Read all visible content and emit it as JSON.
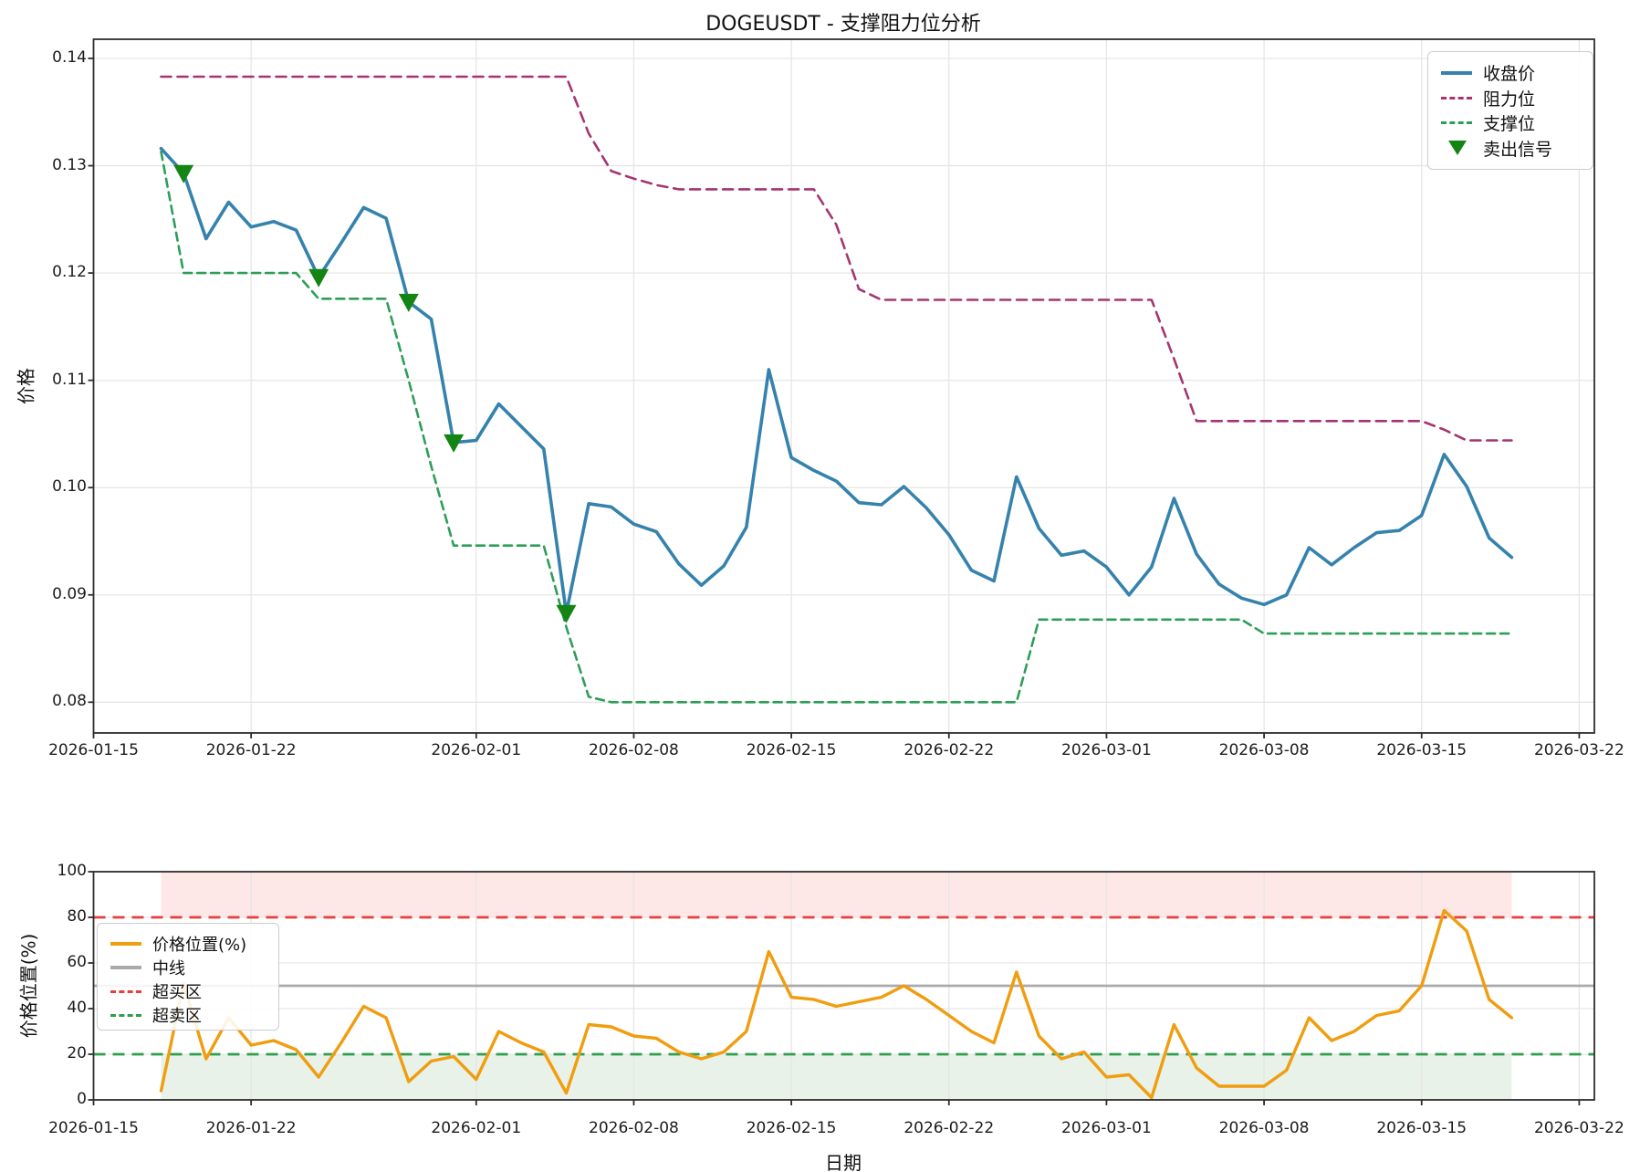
{
  "title": "DOGEUSDT - 支撑阻力位分析",
  "chart_data": [
    {
      "type": "line",
      "title": "DOGEUSDT - 支撑阻力位分析",
      "ylabel": "价格",
      "xlabel": "",
      "ylim": [
        0.0771,
        0.1418
      ],
      "grid": true,
      "legend_position": "top-right",
      "x_tick_labels": [
        "2026-01-15",
        "2026-01-22",
        "2026-02-01",
        "2026-02-08",
        "2026-02-15",
        "2026-02-22",
        "2026-03-01",
        "2026-03-08",
        "2026-03-15",
        "2026-03-22"
      ],
      "y_tick_labels": [
        "0.14",
        "0.13",
        "0.12",
        "0.11",
        "0.10",
        "0.09",
        "0.08"
      ],
      "y_tick_values": [
        0.14,
        0.13,
        0.12,
        0.11,
        0.1,
        0.09,
        0.08
      ],
      "legend": [
        "收盘价",
        "阻力位",
        "支撑位",
        "卖出信号"
      ],
      "x": [
        "2026-01-18",
        "2026-01-19",
        "2026-01-20",
        "2026-01-21",
        "2026-01-22",
        "2026-01-23",
        "2026-01-24",
        "2026-01-25",
        "2026-01-26",
        "2026-01-27",
        "2026-01-28",
        "2026-01-29",
        "2026-01-30",
        "2026-01-31",
        "2026-02-01",
        "2026-02-02",
        "2026-02-03",
        "2026-02-04",
        "2026-02-05",
        "2026-02-06",
        "2026-02-07",
        "2026-02-08",
        "2026-02-09",
        "2026-02-10",
        "2026-02-11",
        "2026-02-12",
        "2026-02-13",
        "2026-02-14",
        "2026-02-15",
        "2026-02-16",
        "2026-02-17",
        "2026-02-18",
        "2026-02-19",
        "2026-02-20",
        "2026-02-21",
        "2026-02-22",
        "2026-02-23",
        "2026-02-24",
        "2026-02-25",
        "2026-02-26",
        "2026-02-27",
        "2026-02-28",
        "2026-03-01",
        "2026-03-02",
        "2026-03-03",
        "2026-03-04",
        "2026-03-05",
        "2026-03-06",
        "2026-03-07",
        "2026-03-08",
        "2026-03-09",
        "2026-03-10",
        "2026-03-11",
        "2026-03-12",
        "2026-03-13",
        "2026-03-14",
        "2026-03-15",
        "2026-03-16",
        "2026-03-17",
        "2026-03-18",
        "2026-03-19"
      ],
      "series": [
        {
          "name": "收盘价",
          "color": "#3582ad",
          "style": "solid",
          "width": 3.6,
          "values": [
            0.1316,
            0.1293,
            0.1232,
            0.1266,
            0.1243,
            0.1248,
            0.124,
            0.1196,
            0.1228,
            0.1261,
            0.1251,
            0.1173,
            0.1157,
            0.1042,
            0.1044,
            0.1078,
            0.1057,
            0.1036,
            0.0883,
            0.0985,
            0.0982,
            0.0966,
            0.0959,
            0.0929,
            0.0909,
            0.0927,
            0.0963,
            0.111,
            0.1028,
            0.1016,
            0.1006,
            0.0986,
            0.0984,
            0.1001,
            0.0981,
            0.0956,
            0.0923,
            0.0913,
            0.101,
            0.0962,
            0.0937,
            0.0941,
            0.0926,
            0.09,
            0.0926,
            0.099,
            0.0938,
            0.091,
            0.0897,
            0.0891,
            0.09,
            0.0944,
            0.0928,
            0.0944,
            0.0958,
            0.096,
            0.0974,
            0.1031,
            0.1001,
            0.0953,
            0.0935
          ]
        },
        {
          "name": "阻力位",
          "color": "#a53572",
          "style": "dashed",
          "width": 2.6,
          "values": [
            0.1383,
            0.1383,
            0.1383,
            0.1383,
            0.1383,
            0.1383,
            0.1383,
            0.1383,
            0.1383,
            0.1383,
            0.1383,
            0.1383,
            0.1383,
            0.1383,
            0.1383,
            0.1383,
            0.1383,
            0.1383,
            0.1383,
            0.133,
            0.1295,
            0.1288,
            0.1282,
            0.1278,
            0.1278,
            0.1278,
            0.1278,
            0.1278,
            0.1278,
            0.1278,
            0.1245,
            0.1185,
            0.1175,
            0.1175,
            0.1175,
            0.1175,
            0.1175,
            0.1175,
            0.1175,
            0.1175,
            0.1175,
            0.1175,
            0.1175,
            0.1175,
            0.1175,
            0.112,
            0.1062,
            0.1062,
            0.1062,
            0.1062,
            0.1062,
            0.1062,
            0.1062,
            0.1062,
            0.1062,
            0.1062,
            0.1062,
            0.1054,
            0.1044,
            0.1044,
            0.1044
          ]
        },
        {
          "name": "支撑位",
          "color": "#2d9e58",
          "style": "dashed",
          "width": 2.6,
          "values": [
            0.1313,
            0.12,
            0.12,
            0.12,
            0.12,
            0.12,
            0.12,
            0.1176,
            0.1176,
            0.1176,
            0.1176,
            0.11,
            0.102,
            0.0946,
            0.0946,
            0.0946,
            0.0946,
            0.0946,
            0.087,
            0.0805,
            0.08,
            0.08,
            0.08,
            0.08,
            0.08,
            0.08,
            0.08,
            0.08,
            0.08,
            0.08,
            0.08,
            0.08,
            0.08,
            0.08,
            0.08,
            0.08,
            0.08,
            0.08,
            0.08,
            0.0877,
            0.0877,
            0.0877,
            0.0877,
            0.0877,
            0.0877,
            0.0877,
            0.0877,
            0.0877,
            0.0877,
            0.0864,
            0.0864,
            0.0864,
            0.0864,
            0.0864,
            0.0864,
            0.0864,
            0.0864,
            0.0864,
            0.0864,
            0.0864,
            0.0864
          ]
        }
      ],
      "sell_signals": {
        "name": "卖出信号",
        "color": "#148414",
        "marker": "triangle-down",
        "dates": [
          "2026-01-19",
          "2026-01-25",
          "2026-01-29",
          "2026-01-31",
          "2026-02-05"
        ],
        "values": [
          0.1293,
          0.1196,
          0.1173,
          0.1042,
          0.0883
        ]
      }
    },
    {
      "type": "line",
      "ylabel": "价格位置(%)",
      "xlabel": "日期",
      "ylim": [
        0,
        100
      ],
      "grid": true,
      "legend_position": "left",
      "x_tick_labels": [
        "2026-01-15",
        "2026-01-22",
        "2026-02-01",
        "2026-02-08",
        "2026-02-15",
        "2026-02-22",
        "2026-03-01",
        "2026-03-08",
        "2026-03-15",
        "2026-03-22"
      ],
      "y_tick_labels": [
        "100",
        "80",
        "60",
        "40",
        "20",
        "0"
      ],
      "y_tick_values": [
        100,
        80,
        60,
        40,
        20,
        0
      ],
      "legend": [
        "价格位置(%)",
        "中线",
        "超买区",
        "超卖区"
      ],
      "x": [
        "2026-01-18",
        "2026-01-19",
        "2026-01-20",
        "2026-01-21",
        "2026-01-22",
        "2026-01-23",
        "2026-01-24",
        "2026-01-25",
        "2026-01-26",
        "2026-01-27",
        "2026-01-28",
        "2026-01-29",
        "2026-01-30",
        "2026-01-31",
        "2026-02-01",
        "2026-02-02",
        "2026-02-03",
        "2026-02-04",
        "2026-02-05",
        "2026-02-06",
        "2026-02-07",
        "2026-02-08",
        "2026-02-09",
        "2026-02-10",
        "2026-02-11",
        "2026-02-12",
        "2026-02-13",
        "2026-02-14",
        "2026-02-15",
        "2026-02-16",
        "2026-02-17",
        "2026-02-18",
        "2026-02-19",
        "2026-02-20",
        "2026-02-21",
        "2026-02-22",
        "2026-02-23",
        "2026-02-24",
        "2026-02-25",
        "2026-02-26",
        "2026-02-27",
        "2026-02-28",
        "2026-03-01",
        "2026-03-02",
        "2026-03-03",
        "2026-03-04",
        "2026-03-05",
        "2026-03-06",
        "2026-03-07",
        "2026-03-08",
        "2026-03-09",
        "2026-03-10",
        "2026-03-11",
        "2026-03-12",
        "2026-03-13",
        "2026-03-14",
        "2026-03-15",
        "2026-03-16",
        "2026-03-17",
        "2026-03-18",
        "2026-03-19"
      ],
      "series": [
        {
          "name": "价格位置(%)",
          "color": "#f09d0f",
          "style": "solid",
          "width": 3.4,
          "values": [
            4,
            51,
            18,
            36,
            24,
            26,
            22,
            10,
            25,
            41,
            36,
            8,
            17,
            19,
            9,
            30,
            25,
            21,
            3,
            33,
            32,
            28,
            27,
            21,
            18,
            21,
            30,
            65,
            45,
            44,
            41,
            43,
            45,
            50,
            44,
            37,
            30,
            25,
            56,
            28,
            18,
            21,
            10,
            11,
            1,
            33,
            14,
            6,
            6,
            6,
            13,
            36,
            26,
            30,
            37,
            39,
            50,
            83,
            74,
            44,
            36
          ]
        }
      ],
      "thresholds": {
        "midline": {
          "label": "中线",
          "value": 50,
          "color": "#aaaaaa",
          "style": "solid"
        },
        "overbought": {
          "label": "超买区",
          "value": 80,
          "color": "#e83e3e",
          "style": "dashed",
          "band": [
            80,
            100
          ],
          "band_fill": "rgba(240,80,70,0.13)"
        },
        "oversold": {
          "label": "超卖区",
          "value": 20,
          "color": "#2f9e4f",
          "style": "dashed",
          "band": [
            0,
            20
          ],
          "band_fill": "rgba(90,160,90,0.14)"
        }
      }
    }
  ]
}
